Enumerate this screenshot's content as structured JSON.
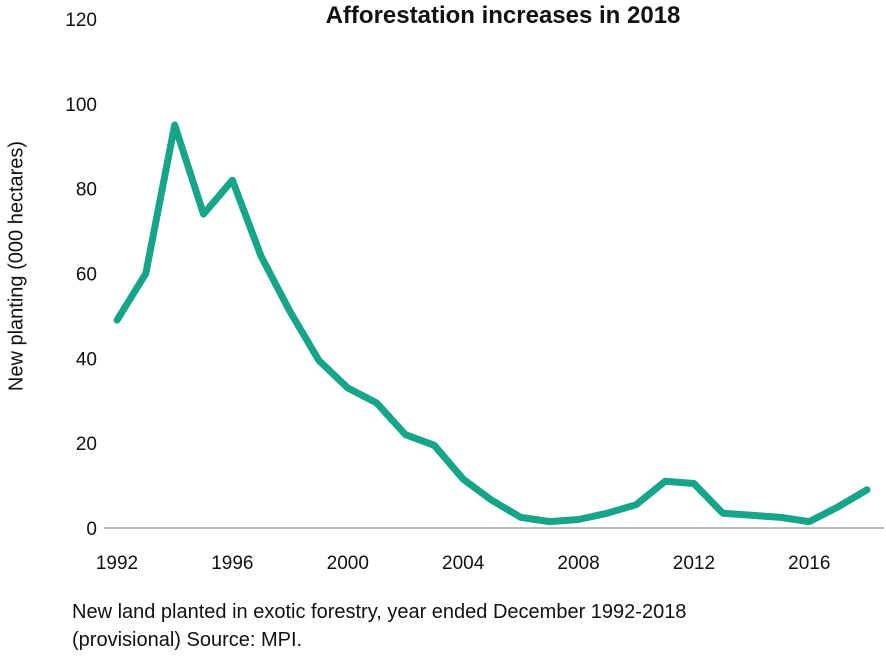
{
  "chart_data": {
    "type": "line",
    "title": "Afforestation increases in 2018",
    "xlabel": "",
    "ylabel": "New planting (000 hectares)",
    "xlim": [
      1992,
      2018
    ],
    "ylim": [
      0,
      120
    ],
    "x_ticks": [
      1992,
      1996,
      2000,
      2004,
      2008,
      2012,
      2016
    ],
    "y_ticks": [
      0,
      20,
      40,
      60,
      80,
      100,
      120
    ],
    "grid": false,
    "legend": "none",
    "x": [
      1992,
      1993,
      1994,
      1995,
      1996,
      1997,
      1998,
      1999,
      2000,
      2001,
      2002,
      2003,
      2004,
      2005,
      2006,
      2007,
      2008,
      2009,
      2010,
      2011,
      2012,
      2013,
      2014,
      2015,
      2016,
      2017,
      2018
    ],
    "series": [
      {
        "values": [
          49,
          60,
          95,
          74,
          82,
          64,
          51,
          39.5,
          33,
          29.5,
          22,
          19.5,
          11.5,
          6.5,
          2.5,
          1.5,
          2,
          3.5,
          5.5,
          11,
          10.5,
          3.5,
          3,
          2.5,
          1.5,
          5,
          9
        ],
        "color": "#17a589"
      }
    ]
  },
  "caption": {
    "line1": "New land planted in exotic forestry, year ended December 1992-2018",
    "line2": "(provisional) Source: MPI."
  }
}
